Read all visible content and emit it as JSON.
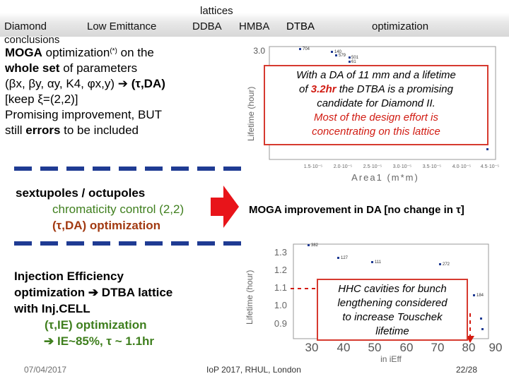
{
  "nav": {
    "diamond": "Diamond",
    "low_emittance": "Low Emittance",
    "lattices": "lattices",
    "ddba": "DDBA",
    "hmba": "HMBA",
    "dtba": "DTBA",
    "optimization": "optimization",
    "conclusions": "conclusions"
  },
  "intro": {
    "line1_bold": "MOGA",
    "line1_rest": " optimization",
    "line1_sup": "(*)",
    "line1_tail": " on the",
    "line2_bold": "whole set",
    "line2_rest": " of parameters",
    "line3": "(βx, βy, αy, K4, φx,y) ",
    "line3_arrow": "➔",
    "line3_bold": " (τ,DA)",
    "line4": "[keep ξ=(2,2)]",
    "line5": "Promising improvement, BUT",
    "line6_a": "still ",
    "line6_bold": "errors",
    "line6_b": " to be included"
  },
  "sext": {
    "title": "sextupoles / octupoles",
    "line2": "chromaticity control (2,2)",
    "line3": "(τ,DA) optimization"
  },
  "moga_note": "MOGA improvement in DA [no change in τ]",
  "injection": {
    "line1": "Injection Efficiency",
    "line2_a": "optimization ",
    "line2_arrow": "➔",
    "line2_b": " DTBA lattice",
    "line3": "with Inj.CELL",
    "line4": "(τ,IE) optimization",
    "line5_arrow": "➔",
    "line5": " IE~85%, τ ~ 1.1hr"
  },
  "callout1": {
    "line1": "With a DA of 11 mm and a lifetime",
    "line2_a": "of ",
    "line2_val": "3.2hr",
    "line2_b": " the DTBA is a promising",
    "line3": "candidate for Diamond II.",
    "line4": "Most of the design effort is",
    "line5": "concentrating on this lattice"
  },
  "callout2": {
    "line1": "HHC cavities for bunch",
    "line2": "lengthening considered",
    "line3": "to increase Touschek",
    "line4": "lifetime"
  },
  "plot1": {
    "ylabel": "Lifetime (hour)",
    "xlabel": "Area1   (m*m)",
    "y_ticks": [
      "3.0"
    ],
    "x_ticks": [
      "1.5·10⁻⁵",
      "2.0·10⁻⁵",
      "2.5·10⁻⁵",
      "3.0·10⁻⁵",
      "3.5·10⁻⁵",
      "4.0·10⁻⁵",
      "4.5·10⁻⁵"
    ],
    "point_labels": [
      "704",
      "140",
      "579",
      "501",
      "61"
    ]
  },
  "plot2": {
    "ylabel": "Lifetime (hour)",
    "xlabel": "in iEff",
    "y_ticks": [
      "1.3",
      "1.2",
      "1.1",
      "1.0",
      "0.9"
    ],
    "x_ticks": [
      "30",
      "40",
      "50",
      "60",
      "70",
      "80",
      "90"
    ],
    "point_labels": [
      "382",
      "127",
      "111",
      "272",
      "184"
    ]
  },
  "footer": {
    "date": "07/04/2017",
    "conference": "IoP 2017, RHUL, London",
    "page": "22/28"
  },
  "colors": {
    "accent_blue": "#1f3b93",
    "green": "#3f7f1e",
    "red": "#d11b12",
    "arrow_red": "#e8141a"
  }
}
